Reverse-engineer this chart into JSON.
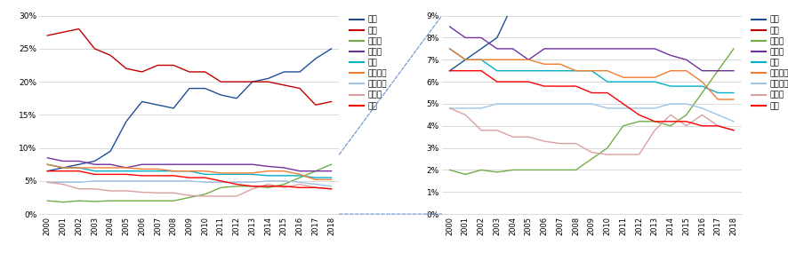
{
  "years": [
    2000,
    2001,
    2002,
    2003,
    2004,
    2005,
    2006,
    2007,
    2008,
    2009,
    2010,
    2011,
    2012,
    2013,
    2014,
    2015,
    2016,
    2017,
    2018
  ],
  "series_order": [
    "中国",
    "米国",
    "インド",
    "ドイツ",
    "英国",
    "フランス",
    "イタリア",
    "ロシア",
    "日本"
  ],
  "series": {
    "中国": {
      "color": "#1f4e96",
      "data": [
        6.5,
        7.0,
        7.5,
        8.0,
        9.5,
        14.0,
        17.0,
        16.5,
        16.0,
        19.0,
        19.0,
        18.0,
        17.5,
        20.0,
        20.5,
        21.5,
        21.5,
        23.5,
        25.0
      ]
    },
    "米国": {
      "color": "#c00000",
      "data": [
        27.0,
        27.5,
        28.0,
        25.0,
        24.0,
        22.0,
        21.5,
        22.5,
        22.5,
        21.5,
        21.5,
        20.0,
        20.0,
        20.0,
        20.0,
        19.5,
        19.0,
        16.5,
        17.0
      ]
    },
    "インド": {
      "color": "#70ad47",
      "data": [
        2.0,
        1.8,
        2.0,
        1.9,
        2.0,
        2.0,
        2.0,
        2.0,
        2.0,
        2.5,
        3.0,
        4.0,
        4.2,
        4.2,
        4.0,
        4.5,
        5.5,
        6.5,
        7.5
      ]
    },
    "ドイツ": {
      "color": "#7030a0",
      "data": [
        8.5,
        8.0,
        8.0,
        7.5,
        7.5,
        7.0,
        7.5,
        7.5,
        7.5,
        7.5,
        7.5,
        7.5,
        7.5,
        7.5,
        7.2,
        7.0,
        6.5,
        6.5,
        6.5
      ]
    },
    "英国": {
      "color": "#00b0c8",
      "data": [
        7.5,
        7.0,
        7.0,
        6.5,
        6.5,
        6.5,
        6.5,
        6.5,
        6.5,
        6.5,
        6.0,
        6.0,
        6.0,
        6.0,
        5.8,
        5.8,
        5.8,
        5.5,
        5.5
      ]
    },
    "フランス": {
      "color": "#ed7d31",
      "data": [
        7.5,
        7.0,
        7.0,
        7.0,
        7.0,
        7.0,
        6.8,
        6.8,
        6.5,
        6.5,
        6.5,
        6.2,
        6.2,
        6.2,
        6.5,
        6.5,
        6.0,
        5.2,
        5.2
      ]
    },
    "イタリア": {
      "color": "#9dc3e6",
      "data": [
        4.8,
        4.8,
        4.8,
        5.0,
        5.0,
        5.0,
        5.0,
        5.0,
        5.0,
        5.0,
        4.8,
        4.8,
        4.8,
        4.8,
        5.0,
        5.0,
        4.8,
        4.5,
        4.2
      ]
    },
    "ロシア": {
      "color": "#d9a0a0",
      "data": [
        4.8,
        4.5,
        3.8,
        3.8,
        3.5,
        3.5,
        3.3,
        3.2,
        3.2,
        2.8,
        2.7,
        2.7,
        2.7,
        3.8,
        4.5,
        4.0,
        4.5,
        4.0,
        3.8
      ]
    },
    "日本": {
      "color": "#ff0000",
      "data": [
        6.5,
        6.5,
        6.5,
        6.0,
        6.0,
        6.0,
        5.8,
        5.8,
        5.8,
        5.5,
        5.5,
        5.0,
        4.5,
        4.2,
        4.2,
        4.2,
        4.0,
        4.0,
        3.8
      ]
    }
  },
  "left_ylim": [
    0,
    30
  ],
  "left_yticks": [
    0,
    5,
    10,
    15,
    20,
    25,
    30
  ],
  "left_yticklabels": [
    "0%",
    "5%",
    "10%",
    "15%",
    "20%",
    "25%",
    "30%"
  ],
  "right_ylim": [
    0,
    9
  ],
  "right_yticks": [
    0,
    1,
    2,
    3,
    4,
    5,
    6,
    7,
    8,
    9
  ],
  "right_yticklabels": [
    "0%",
    "1%",
    "2%",
    "3%",
    "4%",
    "5%",
    "6%",
    "7%",
    "8%",
    "9%"
  ]
}
